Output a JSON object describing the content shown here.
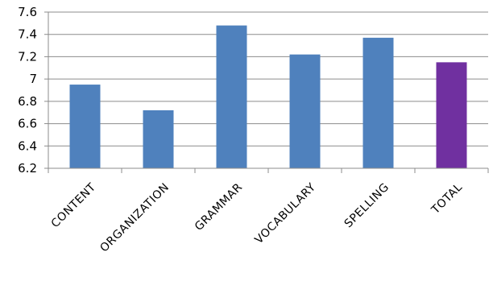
{
  "chart_data": {
    "type": "bar",
    "title": "",
    "xlabel": "",
    "ylabel": "",
    "categories": [
      "CONTENT",
      "ORGANIZATION",
      "GRAMMAR",
      "VOCABULARY",
      "SPELLING",
      "TOTAL"
    ],
    "values": [
      6.95,
      6.72,
      7.48,
      7.22,
      7.37,
      7.15
    ],
    "bar_colors": [
      "#4f81bd",
      "#4f81bd",
      "#4f81bd",
      "#4f81bd",
      "#4f81bd",
      "#7030a0"
    ],
    "ylim": [
      6.2,
      7.6
    ],
    "yticks": [
      "6.2",
      "6.4",
      "6.6",
      "6.8",
      "7",
      "7.2",
      "7.4",
      "7.6"
    ],
    "grid": true,
    "legend": "none"
  }
}
